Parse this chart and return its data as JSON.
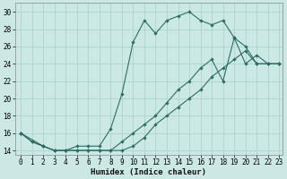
{
  "xlabel": "Humidex (Indice chaleur)",
  "bg_color": "#cce8e4",
  "grid_color": "#aad4d0",
  "line_color": "#2d6e65",
  "xlim": [
    -0.5,
    23.3
  ],
  "ylim": [
    13.5,
    31
  ],
  "xticks": [
    0,
    1,
    2,
    3,
    4,
    5,
    6,
    7,
    8,
    9,
    10,
    11,
    12,
    13,
    14,
    15,
    16,
    17,
    18,
    19,
    20,
    21,
    22,
    23
  ],
  "yticks": [
    14,
    16,
    18,
    20,
    22,
    24,
    26,
    28,
    30
  ],
  "line1_x": [
    0,
    1,
    2,
    3,
    4,
    5,
    6,
    7,
    8,
    9,
    10,
    11,
    12,
    13,
    14,
    15,
    16,
    17,
    18,
    19,
    20,
    21,
    22,
    23
  ],
  "line1_y": [
    16,
    15,
    14.5,
    14,
    14,
    14.5,
    14.5,
    14.5,
    16.5,
    20.5,
    26.5,
    29,
    27.5,
    29,
    29.5,
    30,
    29,
    28.5,
    29,
    27,
    24,
    25,
    24,
    24
  ],
  "line2_x": [
    0,
    1,
    2,
    3,
    4,
    5,
    6,
    7,
    8,
    9,
    10,
    11,
    12,
    13,
    14,
    15,
    16,
    17,
    18,
    19,
    20,
    21,
    22,
    23
  ],
  "line2_y": [
    16,
    15,
    14.5,
    14,
    14,
    14,
    14,
    14,
    14,
    14,
    14.5,
    15.5,
    17,
    18,
    19,
    20,
    21,
    22.5,
    23.5,
    24.5,
    25.5,
    24,
    24,
    24
  ],
  "line3_x": [
    0,
    2,
    3,
    4,
    5,
    6,
    7,
    8,
    9,
    10,
    11,
    12,
    13,
    14,
    15,
    16,
    17,
    18,
    19,
    20,
    21,
    22,
    23
  ],
  "line3_y": [
    16,
    14.5,
    14,
    14,
    14,
    14,
    14,
    14,
    15,
    16,
    17,
    18,
    19.5,
    21,
    22,
    23.5,
    24.5,
    22,
    27,
    26,
    24,
    24,
    24
  ]
}
